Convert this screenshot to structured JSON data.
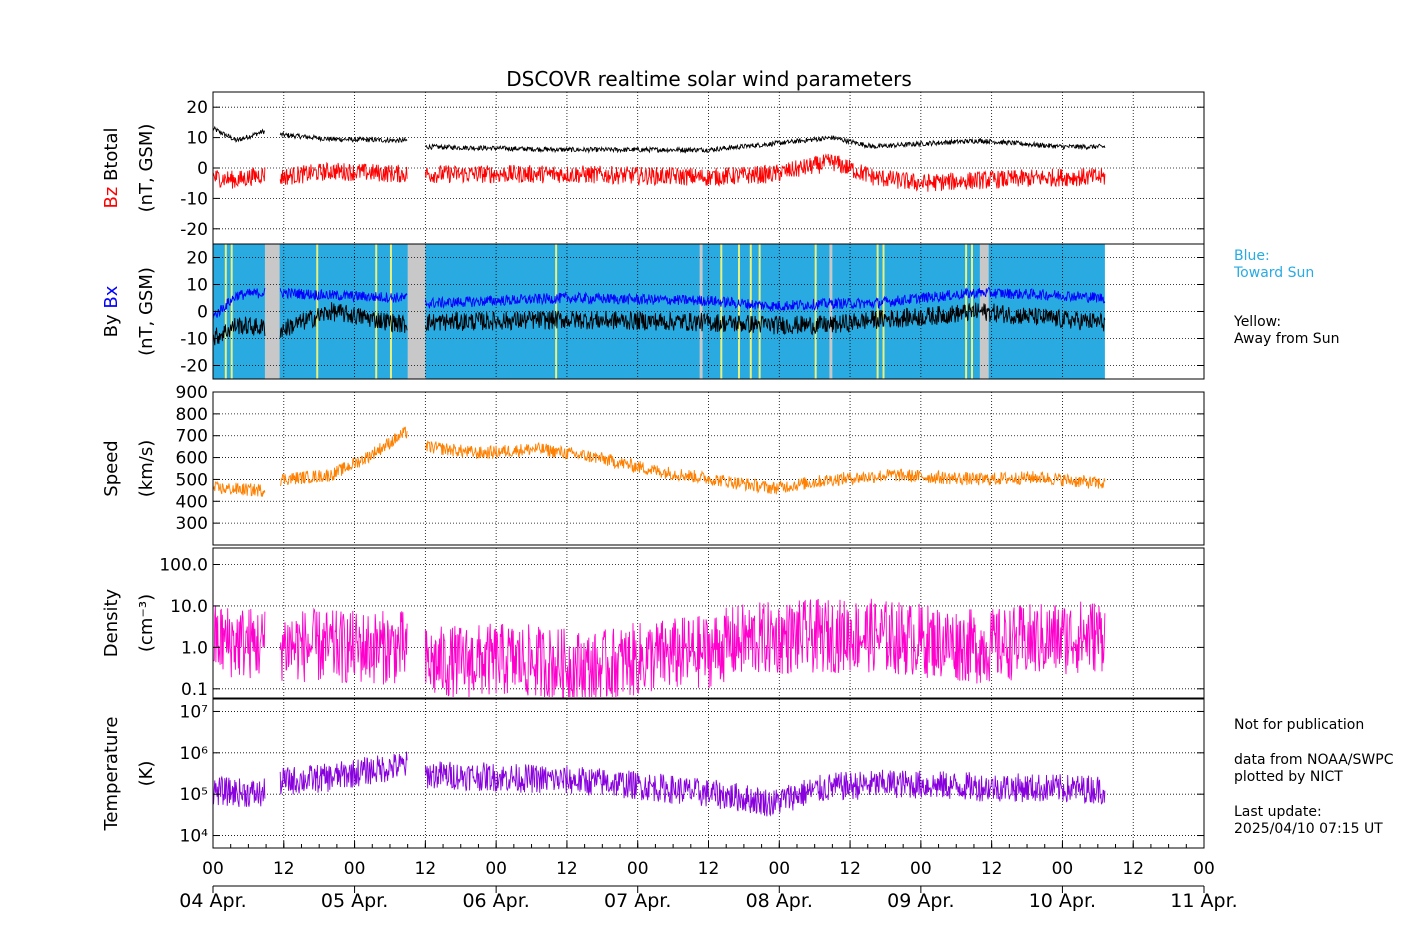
{
  "title": "DSCOVR realtime solar wind parameters",
  "colors": {
    "btotal": "#000000",
    "bz": "#ff0000",
    "bx": "#0000ff",
    "by": "#000000",
    "speed": "#ff8000",
    "density": "#ff00cc",
    "temperature": "#8800dd",
    "toward_sun": "#29abe2",
    "away_sun": "#e8f080",
    "gap": "#c8c8c8"
  },
  "notes": {
    "blue_label": "Blue:",
    "blue_text": "Toward Sun",
    "yellow_label": "Yellow:",
    "yellow_text": "Away from Sun",
    "not_for_pub": "Not for publication",
    "data_from": "data from NOAA/SWPC",
    "plotted_by": "plotted by NICT",
    "last_update_label": "Last update:",
    "last_update": "2025/04/10 07:15 UT"
  },
  "chart_data": {
    "type": "line",
    "x_unit": "hours since 04 Apr. 00 UT",
    "x_range": [
      0,
      168
    ],
    "x_tick_labels": [
      "00",
      "12",
      "00",
      "12",
      "00",
      "12",
      "00",
      "12",
      "00",
      "12",
      "00",
      "12",
      "00",
      "12",
      "00"
    ],
    "date_labels": [
      "04 Apr.",
      "05 Apr.",
      "06 Apr.",
      "07 Apr.",
      "08 Apr.",
      "09 Apr.",
      "10 Apr.",
      "11 Apr."
    ],
    "data_end_hour": 151.2,
    "gaps": [
      [
        8.8,
        11.3
      ],
      [
        33,
        36
      ]
    ],
    "panels": [
      {
        "id": "mag",
        "ylabel_parts": [
          "Bz",
          "Btotal"
        ],
        "ylabel_unit": "(nT, GSM)",
        "ylim": [
          -25,
          25
        ],
        "yticks": [
          -20,
          -10,
          0,
          10,
          20
        ],
        "series": [
          {
            "name": "Btotal",
            "color_key": "btotal",
            "hours": [
              0,
              4,
              8.5,
              11.3,
              20,
              33,
              36,
              60,
              84,
              95,
              105,
              112,
              120,
              130,
              144,
              151
            ],
            "values": [
              13,
              9,
              12,
              11,
              9.5,
              9,
              7,
              6,
              6,
              8,
              10,
              7,
              8,
              9,
              7,
              7
            ],
            "noise": 0.8
          },
          {
            "name": "Bz",
            "color_key": "bz",
            "hours": [
              0,
              4,
              8.5,
              11.3,
              20,
              33,
              36,
              60,
              84,
              95,
              105,
              112,
              120,
              130,
              144,
              151
            ],
            "values": [
              -3,
              -4,
              -2,
              -3,
              -1,
              -2,
              -2,
              -2,
              -3,
              -2,
              2,
              -3,
              -5,
              -4,
              -3,
              -3
            ],
            "noise": 3.0
          }
        ]
      },
      {
        "id": "imf",
        "ylabel_parts": [
          "By",
          "Bx"
        ],
        "ylabel_unit": "(nT, GSM)",
        "ylim": [
          -25,
          25
        ],
        "yticks": [
          -20,
          -10,
          0,
          10,
          20
        ],
        "background": {
          "default_color_key": "toward_sun",
          "away_hours": [
            2,
            3,
            17.5,
            27.5,
            30,
            58,
            86,
            89,
            91,
            92.5,
            102,
            112.5,
            113.5,
            127.5,
            128.5
          ],
          "gap_hours": [
            [
              8.8,
              11.3
            ],
            [
              33,
              36
            ],
            [
              130,
              131.5
            ],
            [
              82.5,
              83
            ],
            [
              104.5,
              105
            ]
          ]
        },
        "series": [
          {
            "name": "Bx",
            "color_key": "bx",
            "hours": [
              0,
              4,
              8.5,
              11.3,
              20,
              33,
              36,
              60,
              84,
              95,
              105,
              112,
              120,
              130,
              144,
              151
            ],
            "values": [
              -2,
              6,
              7,
              7,
              6,
              5,
              3,
              5,
              4,
              2,
              3,
              3,
              5,
              7,
              6,
              5
            ],
            "noise": 2.0
          },
          {
            "name": "By",
            "color_key": "by",
            "hours": [
              0,
              4,
              8.5,
              11.3,
              20,
              33,
              36,
              60,
              84,
              95,
              105,
              112,
              120,
              130,
              144,
              151
            ],
            "values": [
              -10,
              -5,
              -6,
              -7,
              0,
              -5,
              -4,
              -3,
              -4,
              -5,
              -5,
              -3,
              -2,
              0,
              -3,
              -4
            ],
            "noise": 3.5
          }
        ]
      },
      {
        "id": "speed",
        "ylabel_parts": [
          "Speed"
        ],
        "ylabel_unit": "(km/s)",
        "ylim": [
          200,
          900
        ],
        "yticks": [
          300,
          400,
          500,
          600,
          700,
          800,
          900
        ],
        "series": [
          {
            "name": "Speed",
            "color_key": "speed",
            "hours": [
              0,
              8.5,
              11.3,
              20,
              26,
              33,
              36,
              45,
              55,
              65,
              75,
              85,
              95,
              105,
              115,
              130,
              140,
              151
            ],
            "values": [
              460,
              450,
              500,
              520,
              600,
              720,
              650,
              620,
              640,
              600,
              540,
              500,
              460,
              500,
              520,
              500,
              510,
              480
            ],
            "noise": 30
          }
        ]
      },
      {
        "id": "density",
        "ylabel_parts": [
          "Density"
        ],
        "ylabel_unit": "(cm⁻³)",
        "scale": "log",
        "ylim": [
          0.06,
          250
        ],
        "yticks": [
          0.1,
          1.0,
          10.0,
          100.0
        ],
        "ytick_labels": [
          "0.1",
          "1.0",
          "10.0",
          "100.0"
        ],
        "series": [
          {
            "name": "Density",
            "color_key": "density",
            "hours": [
              0,
              8.5,
              11.3,
              20,
              33,
              36,
              50,
              65,
              75,
              84,
              90,
              100,
              110,
              120,
              130,
              140,
              151
            ],
            "values": [
              1.5,
              1.2,
              1.2,
              1.0,
              1.0,
              0.4,
              0.5,
              0.3,
              0.6,
              0.8,
              1.5,
              1.8,
              2.0,
              1.5,
              1.0,
              1.5,
              2.0
            ],
            "noise": 0.9
          }
        ]
      },
      {
        "id": "temperature",
        "ylabel_parts": [
          "Temperature"
        ],
        "ylabel_unit": "(K)",
        "scale": "log",
        "ylim": [
          5000,
          20000000
        ],
        "yticks": [
          10000,
          100000,
          1000000,
          10000000
        ],
        "ytick_labels": [
          "10⁴",
          "10⁵",
          "10⁶",
          "10⁷"
        ],
        "series": [
          {
            "name": "Temperature",
            "color_key": "temperature",
            "hours": [
              0,
              8.5,
              11.3,
              20,
              28,
              33,
              36,
              50,
              65,
              80,
              95,
              105,
              115,
              130,
              151
            ],
            "values": [
              120000,
              100000,
              200000,
              250000,
              400000,
              500000,
              300000,
              250000,
              200000,
              120000,
              60000,
              150000,
              180000,
              150000,
              130000
            ],
            "noise": 0.35
          }
        ]
      }
    ]
  }
}
